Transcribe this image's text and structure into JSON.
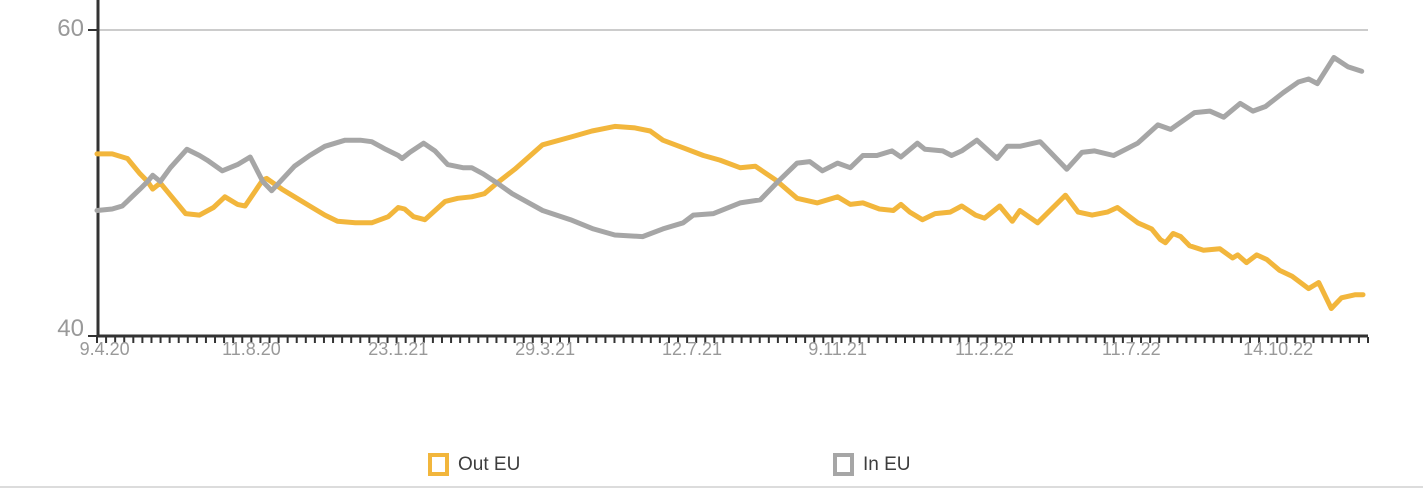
{
  "chart_data": {
    "type": "line",
    "title": "",
    "xlabel": "",
    "ylabel": "",
    "y_axis": {
      "ticks": [
        {
          "label": "60",
          "value": 60
        },
        {
          "label": "40",
          "value": 40
        }
      ],
      "range": [
        40,
        62
      ],
      "gridline_at": 60
    },
    "x_axis": {
      "tick_labels": [
        "9.4.20",
        "11.8.20",
        "23.1.21",
        "29.3.21",
        "12.7.21",
        "9.11.21",
        "11.2.22",
        "11.7.22",
        "14.10.22"
      ],
      "tick_label_positions": [
        0.006,
        0.122,
        0.238,
        0.354,
        0.47,
        0.585,
        0.701,
        0.817,
        0.933
      ],
      "minor_ticks": 141
    },
    "legend": [
      {
        "label": "Out EU",
        "color": "#F2B63C"
      },
      {
        "label": "In EU",
        "color": "#A6A6A6"
      }
    ],
    "series": [
      {
        "name": "Out EU",
        "color": "#F2B63C",
        "points": [
          [
            0.0,
            51.9
          ],
          [
            0.012,
            51.9
          ],
          [
            0.024,
            51.6
          ],
          [
            0.034,
            50.6
          ],
          [
            0.04,
            50.1
          ],
          [
            0.044,
            49.6
          ],
          [
            0.05,
            50.0
          ],
          [
            0.056,
            49.4
          ],
          [
            0.07,
            48.0
          ],
          [
            0.081,
            47.9
          ],
          [
            0.092,
            48.4
          ],
          [
            0.101,
            49.1
          ],
          [
            0.111,
            48.6
          ],
          [
            0.117,
            48.5
          ],
          [
            0.131,
            50.2
          ],
          [
            0.134,
            50.3
          ],
          [
            0.146,
            49.6
          ],
          [
            0.156,
            49.1
          ],
          [
            0.168,
            48.5
          ],
          [
            0.18,
            47.9
          ],
          [
            0.19,
            47.5
          ],
          [
            0.204,
            47.4
          ],
          [
            0.217,
            47.4
          ],
          [
            0.23,
            47.8
          ],
          [
            0.238,
            48.4
          ],
          [
            0.243,
            48.3
          ],
          [
            0.25,
            47.8
          ],
          [
            0.259,
            47.6
          ],
          [
            0.275,
            48.8
          ],
          [
            0.285,
            49.0
          ],
          [
            0.296,
            49.1
          ],
          [
            0.306,
            49.3
          ],
          [
            0.316,
            50.0
          ],
          [
            0.33,
            50.9
          ],
          [
            0.352,
            52.5
          ],
          [
            0.374,
            53.0
          ],
          [
            0.391,
            53.4
          ],
          [
            0.409,
            53.7
          ],
          [
            0.425,
            53.6
          ],
          [
            0.437,
            53.4
          ],
          [
            0.447,
            52.8
          ],
          [
            0.463,
            52.3
          ],
          [
            0.479,
            51.8
          ],
          [
            0.492,
            51.5
          ],
          [
            0.508,
            51.0
          ],
          [
            0.52,
            51.1
          ],
          [
            0.536,
            50.2
          ],
          [
            0.553,
            49.0
          ],
          [
            0.569,
            48.7
          ],
          [
            0.585,
            49.1
          ],
          [
            0.595,
            48.6
          ],
          [
            0.605,
            48.7
          ],
          [
            0.618,
            48.3
          ],
          [
            0.629,
            48.2
          ],
          [
            0.635,
            48.6
          ],
          [
            0.642,
            48.1
          ],
          [
            0.652,
            47.6
          ],
          [
            0.662,
            48.0
          ],
          [
            0.674,
            48.1
          ],
          [
            0.683,
            48.5
          ],
          [
            0.694,
            47.9
          ],
          [
            0.701,
            47.7
          ],
          [
            0.713,
            48.5
          ],
          [
            0.723,
            47.5
          ],
          [
            0.729,
            48.2
          ],
          [
            0.743,
            47.4
          ],
          [
            0.765,
            49.2
          ],
          [
            0.775,
            48.1
          ],
          [
            0.786,
            47.9
          ],
          [
            0.798,
            48.1
          ],
          [
            0.806,
            48.4
          ],
          [
            0.822,
            47.4
          ],
          [
            0.833,
            47.0
          ],
          [
            0.84,
            46.3
          ],
          [
            0.844,
            46.1
          ],
          [
            0.85,
            46.7
          ],
          [
            0.856,
            46.5
          ],
          [
            0.863,
            45.9
          ],
          [
            0.874,
            45.6
          ],
          [
            0.887,
            45.7
          ],
          [
            0.897,
            45.1
          ],
          [
            0.901,
            45.3
          ],
          [
            0.908,
            44.8
          ],
          [
            0.916,
            45.3
          ],
          [
            0.924,
            45.0
          ],
          [
            0.934,
            44.3
          ],
          [
            0.944,
            43.9
          ],
          [
            0.957,
            43.1
          ],
          [
            0.965,
            43.5
          ],
          [
            0.975,
            41.8
          ],
          [
            0.983,
            42.5
          ],
          [
            0.994,
            42.7
          ],
          [
            1.0,
            42.7
          ]
        ]
      },
      {
        "name": "In EU",
        "color": "#A6A6A6",
        "points": [
          [
            0.0,
            48.2
          ],
          [
            0.012,
            48.3
          ],
          [
            0.02,
            48.5
          ],
          [
            0.034,
            49.6
          ],
          [
            0.04,
            50.1
          ],
          [
            0.044,
            50.5
          ],
          [
            0.05,
            50.1
          ],
          [
            0.058,
            51.0
          ],
          [
            0.071,
            52.2
          ],
          [
            0.081,
            51.8
          ],
          [
            0.087,
            51.5
          ],
          [
            0.099,
            50.8
          ],
          [
            0.111,
            51.2
          ],
          [
            0.121,
            51.7
          ],
          [
            0.131,
            50.1
          ],
          [
            0.138,
            49.5
          ],
          [
            0.147,
            50.3
          ],
          [
            0.156,
            51.1
          ],
          [
            0.168,
            51.8
          ],
          [
            0.18,
            52.4
          ],
          [
            0.196,
            52.8
          ],
          [
            0.208,
            52.8
          ],
          [
            0.217,
            52.7
          ],
          [
            0.228,
            52.2
          ],
          [
            0.238,
            51.8
          ],
          [
            0.241,
            51.6
          ],
          [
            0.247,
            52.0
          ],
          [
            0.258,
            52.6
          ],
          [
            0.267,
            52.1
          ],
          [
            0.277,
            51.2
          ],
          [
            0.289,
            51.0
          ],
          [
            0.296,
            51.0
          ],
          [
            0.305,
            50.6
          ],
          [
            0.316,
            50.0
          ],
          [
            0.328,
            49.3
          ],
          [
            0.352,
            48.2
          ],
          [
            0.374,
            47.6
          ],
          [
            0.392,
            47.0
          ],
          [
            0.409,
            46.6
          ],
          [
            0.431,
            46.5
          ],
          [
            0.447,
            47.0
          ],
          [
            0.463,
            47.4
          ],
          [
            0.471,
            47.9
          ],
          [
            0.487,
            48.0
          ],
          [
            0.508,
            48.7
          ],
          [
            0.524,
            48.9
          ],
          [
            0.538,
            50.1
          ],
          [
            0.553,
            51.3
          ],
          [
            0.563,
            51.4
          ],
          [
            0.573,
            50.8
          ],
          [
            0.585,
            51.3
          ],
          [
            0.595,
            51.0
          ],
          [
            0.605,
            51.8
          ],
          [
            0.616,
            51.8
          ],
          [
            0.628,
            52.1
          ],
          [
            0.635,
            51.7
          ],
          [
            0.648,
            52.6
          ],
          [
            0.654,
            52.2
          ],
          [
            0.668,
            52.1
          ],
          [
            0.675,
            51.8
          ],
          [
            0.683,
            52.1
          ],
          [
            0.695,
            52.8
          ],
          [
            0.711,
            51.6
          ],
          [
            0.719,
            52.4
          ],
          [
            0.729,
            52.4
          ],
          [
            0.745,
            52.7
          ],
          [
            0.766,
            50.9
          ],
          [
            0.778,
            52.0
          ],
          [
            0.788,
            52.1
          ],
          [
            0.803,
            51.8
          ],
          [
            0.822,
            52.6
          ],
          [
            0.838,
            53.8
          ],
          [
            0.848,
            53.5
          ],
          [
            0.867,
            54.6
          ],
          [
            0.879,
            54.7
          ],
          [
            0.89,
            54.3
          ],
          [
            0.903,
            55.2
          ],
          [
            0.913,
            54.7
          ],
          [
            0.923,
            55.0
          ],
          [
            0.937,
            55.9
          ],
          [
            0.949,
            56.6
          ],
          [
            0.957,
            56.8
          ],
          [
            0.964,
            56.5
          ],
          [
            0.977,
            58.2
          ],
          [
            0.988,
            57.6
          ],
          [
            0.999,
            57.3
          ]
        ]
      }
    ],
    "colors": {
      "axis": "#333333",
      "gridline": "#cccccc",
      "tick_label": "#999999",
      "legend_text": "#3d3d3d",
      "divider": "#dcdcdc"
    }
  }
}
